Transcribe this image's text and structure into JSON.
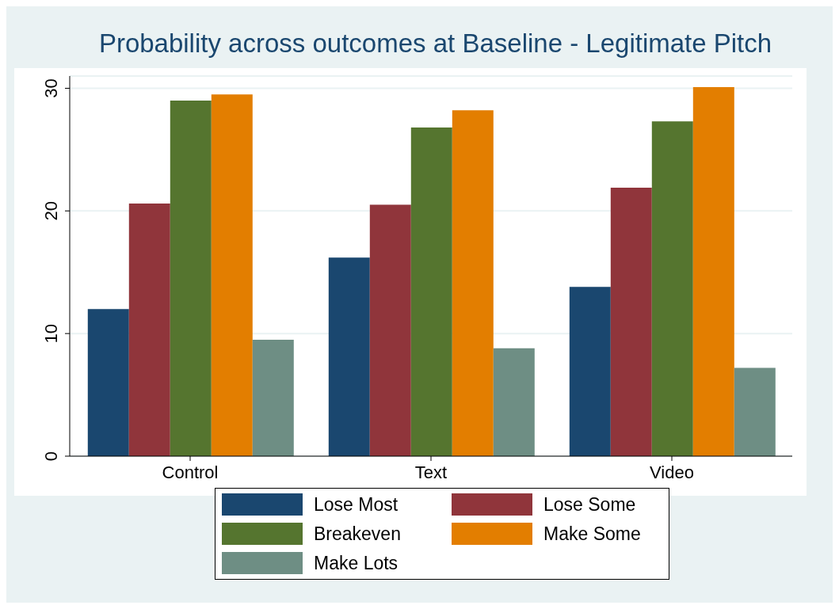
{
  "chart_data": {
    "type": "bar",
    "title": "Probability across outcomes at Baseline - Legitimate Pitch",
    "categories": [
      "Control",
      "Text",
      "Video"
    ],
    "series": [
      {
        "name": "Lose Most",
        "color": "#1a476f",
        "values": [
          12.0,
          16.2,
          13.8
        ]
      },
      {
        "name": "Lose Some",
        "color": "#90353b",
        "values": [
          20.6,
          20.5,
          21.9
        ]
      },
      {
        "name": "Breakeven",
        "color": "#55752f",
        "values": [
          29.0,
          26.8,
          27.3
        ]
      },
      {
        "name": "Make Some",
        "color": "#e37e00",
        "values": [
          29.5,
          28.2,
          30.1
        ]
      },
      {
        "name": "Make Lots",
        "color": "#6e8e84",
        "values": [
          9.5,
          8.8,
          7.2
        ]
      }
    ],
    "ylim": [
      0,
      31
    ],
    "yticks": [
      0,
      10,
      20,
      30
    ],
    "grid": "y",
    "legend": "bottom"
  }
}
